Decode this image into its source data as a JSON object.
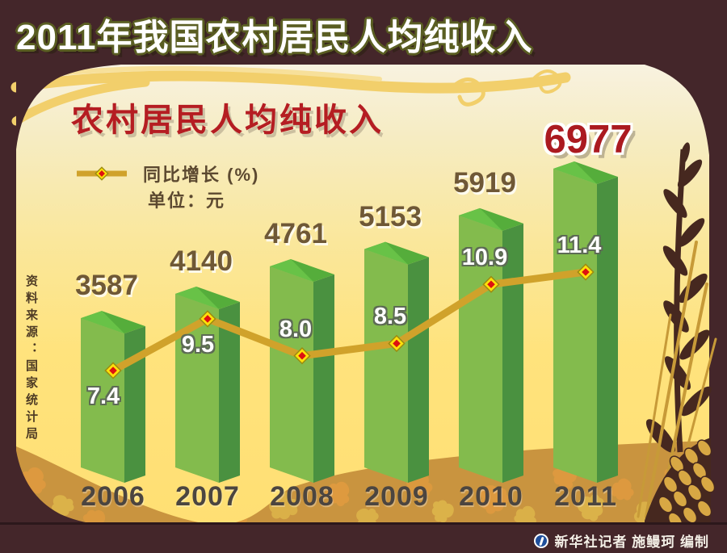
{
  "header": {
    "title": "2011年我国农村居民人均纯收入"
  },
  "footer": {
    "credit": "新华社记者 施鳗珂 编制",
    "logo_icon": "xinhua-logo-icon"
  },
  "source_note": "资料来源：国家统计局",
  "chart_data": {
    "type": "bar+line",
    "title": "农村居民人均纯收入",
    "legend_label": "同比增长 (%)",
    "unit_label": "单位：元",
    "categories": [
      "2006",
      "2007",
      "2008",
      "2009",
      "2010",
      "2011"
    ],
    "series": [
      {
        "name": "农村居民人均纯收入(元)",
        "type": "bar",
        "values": [
          3587,
          4140,
          4761,
          5153,
          5919,
          6977
        ]
      },
      {
        "name": "同比增长(%)",
        "type": "line",
        "values_display": [
          "7.4",
          "9.5",
          "8.0",
          "8.5",
          "10.9",
          "11.4"
        ]
      }
    ],
    "highlighted_category": "2011",
    "highlighted_value": 6977,
    "legend_position": "top-left",
    "grid": "off",
    "colors": {
      "bar_front": "#83bb4d",
      "bar_side": "#4a9140",
      "bar_top": "#55ad3b",
      "bar_top_highlight": "#68c247",
      "line": "#d0a22b",
      "marker_outer": "#ffe10a",
      "marker_outline": "#9b8b10",
      "marker_inner": "#dd1111",
      "value_label": "#6f5836",
      "value_label_final": "#ab1a20",
      "growth_label": "#ffffff",
      "year_label": "#4b4540",
      "frame": "#44262a",
      "panel_top": "#f8f2e0",
      "panel_bottom": "#ffdf73",
      "band": "#c9943f",
      "title_red": "#b51d22"
    }
  }
}
